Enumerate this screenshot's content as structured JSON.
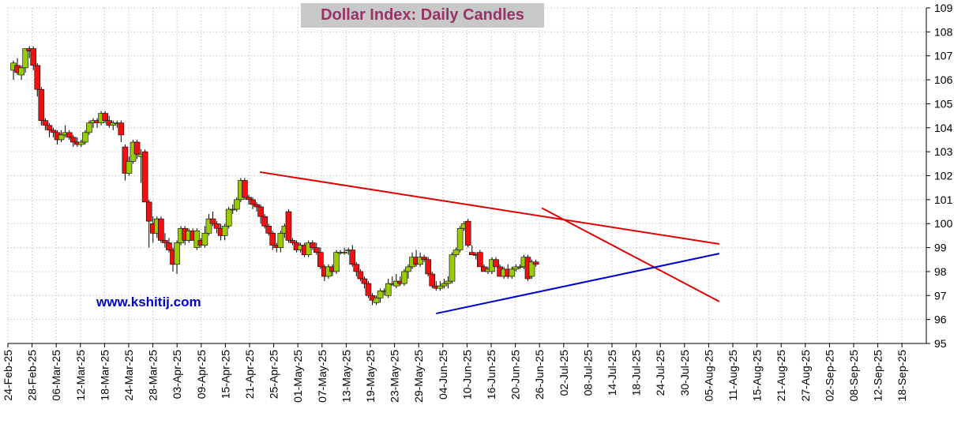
{
  "chart_data": {
    "type": "candlestick",
    "title": "Dollar Index: Daily Candles",
    "watermark": "www.kshitij.com",
    "y_axis": {
      "position": "right",
      "ylim": [
        95,
        109
      ],
      "ticks": [
        95,
        96,
        97,
        98,
        99,
        100,
        101,
        102,
        103,
        104,
        105,
        106,
        107,
        108,
        109
      ]
    },
    "x_tick_labels": [
      "24-Feb-25",
      "28-Feb-25",
      "06-Mar-25",
      "12-Mar-25",
      "18-Mar-25",
      "24-Mar-25",
      "28-Mar-25",
      "03-Apr-25",
      "09-Apr-25",
      "15-Apr-25",
      "21-Apr-25",
      "25-Apr-25",
      "01-May-25",
      "07-May-25",
      "13-May-25",
      "19-May-25",
      "23-May-25",
      "29-May-25",
      "04-Jun-25",
      "10-Jun-25",
      "16-Jun-25",
      "20-Jun-25",
      "26-Jun-25",
      "02-Jul-25",
      "08-Jul-25",
      "14-Jul-25",
      "18-Jul-25",
      "24-Jul-25",
      "30-Jul-25",
      "05-Aug-25",
      "11-Aug-25",
      "15-Aug-25",
      "21-Aug-25",
      "27-Aug-25",
      "02-Sep-25",
      "08-Sep-25",
      "12-Sep-25",
      "18-Sep-25"
    ],
    "up_color": "#99cc00",
    "down_color": "#ee1111",
    "candles": [
      {
        "o": 106.4,
        "h": 106.8,
        "l": 106.0,
        "c": 106.7
      },
      {
        "o": 106.6,
        "h": 106.9,
        "l": 106.2,
        "c": 106.3
      },
      {
        "o": 106.2,
        "h": 106.6,
        "l": 106.0,
        "c": 106.5
      },
      {
        "o": 106.5,
        "h": 107.3,
        "l": 106.3,
        "c": 107.3
      },
      {
        "o": 107.3,
        "h": 107.4,
        "l": 106.9,
        "c": 107.2
      },
      {
        "o": 107.3,
        "h": 107.4,
        "l": 106.4,
        "c": 106.6
      },
      {
        "o": 106.6,
        "h": 106.7,
        "l": 105.3,
        "c": 105.6
      },
      {
        "o": 105.6,
        "h": 105.7,
        "l": 104.1,
        "c": 104.3
      },
      {
        "o": 104.3,
        "h": 104.4,
        "l": 103.9,
        "c": 104.1
      },
      {
        "o": 104.1,
        "h": 104.2,
        "l": 103.6,
        "c": 103.9
      },
      {
        "o": 103.9,
        "h": 104.0,
        "l": 103.6,
        "c": 103.8
      },
      {
        "o": 103.8,
        "h": 103.9,
        "l": 103.3,
        "c": 103.5
      },
      {
        "o": 103.5,
        "h": 103.9,
        "l": 103.4,
        "c": 103.7
      },
      {
        "o": 103.7,
        "h": 104.1,
        "l": 103.6,
        "c": 103.8
      },
      {
        "o": 103.8,
        "h": 103.9,
        "l": 103.5,
        "c": 103.6
      },
      {
        "o": 103.6,
        "h": 103.7,
        "l": 103.2,
        "c": 103.4
      },
      {
        "o": 103.4,
        "h": 103.6,
        "l": 103.2,
        "c": 103.3
      },
      {
        "o": 103.3,
        "h": 103.5,
        "l": 103.2,
        "c": 103.4
      },
      {
        "o": 103.4,
        "h": 103.9,
        "l": 103.3,
        "c": 103.8
      },
      {
        "o": 103.8,
        "h": 104.3,
        "l": 103.7,
        "c": 104.2
      },
      {
        "o": 104.2,
        "h": 104.4,
        "l": 104.0,
        "c": 104.3
      },
      {
        "o": 104.3,
        "h": 104.4,
        "l": 104.0,
        "c": 104.2
      },
      {
        "o": 104.2,
        "h": 104.7,
        "l": 104.1,
        "c": 104.6
      },
      {
        "o": 104.6,
        "h": 104.7,
        "l": 104.2,
        "c": 104.3
      },
      {
        "o": 104.3,
        "h": 104.5,
        "l": 104.0,
        "c": 104.1
      },
      {
        "o": 104.1,
        "h": 104.3,
        "l": 103.9,
        "c": 104.2
      },
      {
        "o": 104.2,
        "h": 104.3,
        "l": 104.0,
        "c": 104.2
      },
      {
        "o": 104.2,
        "h": 104.3,
        "l": 103.4,
        "c": 103.7
      },
      {
        "o": 103.2,
        "h": 103.3,
        "l": 101.8,
        "c": 102.1
      },
      {
        "o": 102.1,
        "h": 102.8,
        "l": 102.0,
        "c": 102.6
      },
      {
        "o": 102.6,
        "h": 103.5,
        "l": 102.5,
        "c": 103.4
      },
      {
        "o": 103.4,
        "h": 103.5,
        "l": 102.7,
        "c": 102.9
      },
      {
        "o": 102.8,
        "h": 103.1,
        "l": 101.7,
        "c": 102.9
      },
      {
        "o": 103.0,
        "h": 103.1,
        "l": 100.9,
        "c": 100.9
      },
      {
        "o": 100.9,
        "h": 101.0,
        "l": 99.0,
        "c": 100.1
      },
      {
        "o": 100.0,
        "h": 100.3,
        "l": 99.2,
        "c": 99.6
      },
      {
        "o": 99.6,
        "h": 100.3,
        "l": 99.4,
        "c": 100.2
      },
      {
        "o": 100.2,
        "h": 100.3,
        "l": 99.2,
        "c": 99.3
      },
      {
        "o": 99.3,
        "h": 99.6,
        "l": 99.0,
        "c": 99.2
      },
      {
        "o": 99.2,
        "h": 99.4,
        "l": 98.8,
        "c": 98.9
      },
      {
        "o": 98.9,
        "h": 99.0,
        "l": 98.0,
        "c": 98.3
      },
      {
        "o": 98.3,
        "h": 99.3,
        "l": 97.9,
        "c": 99.2
      },
      {
        "o": 99.2,
        "h": 99.9,
        "l": 99.1,
        "c": 99.8
      },
      {
        "o": 99.8,
        "h": 99.9,
        "l": 99.1,
        "c": 99.3
      },
      {
        "o": 99.3,
        "h": 99.8,
        "l": 99.2,
        "c": 99.7
      },
      {
        "o": 99.7,
        "h": 99.8,
        "l": 99.3,
        "c": 99.3
      },
      {
        "o": 99.0,
        "h": 99.8,
        "l": 98.9,
        "c": 99.7
      },
      {
        "o": 99.3,
        "h": 99.4,
        "l": 99.0,
        "c": 99.1
      },
      {
        "o": 99.1,
        "h": 99.9,
        "l": 99.0,
        "c": 99.6
      },
      {
        "o": 99.6,
        "h": 100.4,
        "l": 99.5,
        "c": 100.2
      },
      {
        "o": 100.2,
        "h": 100.5,
        "l": 99.9,
        "c": 100.0
      },
      {
        "o": 100.0,
        "h": 100.1,
        "l": 99.6,
        "c": 99.8
      },
      {
        "o": 99.8,
        "h": 100.0,
        "l": 99.3,
        "c": 99.5
      },
      {
        "o": 99.5,
        "h": 100.0,
        "l": 99.3,
        "c": 99.9
      },
      {
        "o": 99.9,
        "h": 100.7,
        "l": 99.8,
        "c": 100.6
      },
      {
        "o": 100.6,
        "h": 100.8,
        "l": 100.4,
        "c": 100.6
      },
      {
        "o": 100.6,
        "h": 101.1,
        "l": 100.5,
        "c": 101.0
      },
      {
        "o": 101.0,
        "h": 101.9,
        "l": 100.9,
        "c": 101.8
      },
      {
        "o": 101.8,
        "h": 101.9,
        "l": 101.0,
        "c": 101.1
      },
      {
        "o": 101.1,
        "h": 101.2,
        "l": 100.8,
        "c": 101.0
      },
      {
        "o": 101.0,
        "h": 101.1,
        "l": 100.6,
        "c": 100.8
      },
      {
        "o": 100.8,
        "h": 100.9,
        "l": 100.5,
        "c": 100.7
      },
      {
        "o": 100.7,
        "h": 100.8,
        "l": 100.0,
        "c": 100.3
      },
      {
        "o": 100.3,
        "h": 100.4,
        "l": 99.8,
        "c": 99.9
      },
      {
        "o": 99.9,
        "h": 100.0,
        "l": 99.5,
        "c": 99.6
      },
      {
        "o": 99.6,
        "h": 99.7,
        "l": 98.9,
        "c": 99.1
      },
      {
        "o": 99.1,
        "h": 99.2,
        "l": 98.8,
        "c": 99.0
      },
      {
        "o": 99.0,
        "h": 99.7,
        "l": 98.8,
        "c": 99.6
      },
      {
        "o": 99.6,
        "h": 100.0,
        "l": 99.4,
        "c": 99.9
      },
      {
        "o": 100.5,
        "h": 100.6,
        "l": 99.2,
        "c": 99.3
      },
      {
        "o": 99.3,
        "h": 99.4,
        "l": 99.1,
        "c": 99.2
      },
      {
        "o": 99.2,
        "h": 99.3,
        "l": 98.8,
        "c": 98.9
      },
      {
        "o": 98.9,
        "h": 99.2,
        "l": 98.8,
        "c": 99.1
      },
      {
        "o": 99.1,
        "h": 99.2,
        "l": 98.6,
        "c": 98.7
      },
      {
        "o": 98.7,
        "h": 99.3,
        "l": 98.6,
        "c": 99.2
      },
      {
        "o": 99.2,
        "h": 99.3,
        "l": 98.9,
        "c": 99.0
      },
      {
        "o": 99.0,
        "h": 99.2,
        "l": 98.7,
        "c": 98.8
      },
      {
        "o": 98.8,
        "h": 99.0,
        "l": 98.1,
        "c": 98.2
      },
      {
        "o": 98.2,
        "h": 98.3,
        "l": 97.6,
        "c": 97.8
      },
      {
        "o": 97.8,
        "h": 98.3,
        "l": 97.7,
        "c": 98.2
      },
      {
        "o": 98.2,
        "h": 98.3,
        "l": 97.8,
        "c": 98.0
      },
      {
        "o": 98.0,
        "h": 98.9,
        "l": 97.9,
        "c": 98.8
      },
      {
        "o": 98.8,
        "h": 98.9,
        "l": 98.7,
        "c": 98.8
      },
      {
        "o": 98.8,
        "h": 99.0,
        "l": 98.7,
        "c": 98.8
      },
      {
        "o": 98.9,
        "h": 99.0,
        "l": 98.7,
        "c": 98.9
      },
      {
        "o": 98.9,
        "h": 99.1,
        "l": 98.2,
        "c": 98.3
      },
      {
        "o": 98.3,
        "h": 98.4,
        "l": 97.8,
        "c": 98.0
      },
      {
        "o": 98.0,
        "h": 98.1,
        "l": 97.6,
        "c": 97.7
      },
      {
        "o": 97.7,
        "h": 97.8,
        "l": 97.3,
        "c": 97.5
      },
      {
        "o": 97.5,
        "h": 97.6,
        "l": 96.9,
        "c": 97.0
      },
      {
        "o": 97.0,
        "h": 97.1,
        "l": 96.6,
        "c": 96.8
      },
      {
        "o": 96.7,
        "h": 97.0,
        "l": 96.6,
        "c": 96.9
      },
      {
        "o": 96.9,
        "h": 97.3,
        "l": 96.7,
        "c": 97.2
      },
      {
        "o": 97.2,
        "h": 97.3,
        "l": 97.0,
        "c": 97.2
      },
      {
        "o": 97.0,
        "h": 97.7,
        "l": 96.9,
        "c": 97.5
      },
      {
        "o": 97.5,
        "h": 97.8,
        "l": 97.4,
        "c": 97.5
      },
      {
        "o": 97.4,
        "h": 97.9,
        "l": 97.3,
        "c": 97.6
      },
      {
        "o": 97.6,
        "h": 97.8,
        "l": 97.4,
        "c": 97.5
      },
      {
        "o": 97.5,
        "h": 98.1,
        "l": 97.4,
        "c": 98.0
      },
      {
        "o": 98.0,
        "h": 98.3,
        "l": 97.7,
        "c": 98.2
      },
      {
        "o": 98.2,
        "h": 98.8,
        "l": 98.1,
        "c": 98.6
      },
      {
        "o": 98.6,
        "h": 98.9,
        "l": 98.2,
        "c": 98.3
      },
      {
        "o": 98.3,
        "h": 98.8,
        "l": 98.2,
        "c": 98.6
      },
      {
        "o": 98.6,
        "h": 98.7,
        "l": 98.4,
        "c": 98.5
      },
      {
        "o": 98.5,
        "h": 98.6,
        "l": 97.8,
        "c": 97.9
      },
      {
        "o": 97.9,
        "h": 98.0,
        "l": 97.3,
        "c": 97.4
      },
      {
        "o": 97.4,
        "h": 97.6,
        "l": 97.2,
        "c": 97.3
      },
      {
        "o": 97.3,
        "h": 97.6,
        "l": 97.2,
        "c": 97.4
      },
      {
        "o": 97.4,
        "h": 97.7,
        "l": 97.3,
        "c": 97.5
      },
      {
        "o": 97.5,
        "h": 97.8,
        "l": 97.3,
        "c": 97.6
      },
      {
        "o": 97.6,
        "h": 98.8,
        "l": 97.5,
        "c": 98.7
      },
      {
        "o": 98.7,
        "h": 99.0,
        "l": 98.6,
        "c": 98.9
      },
      {
        "o": 98.9,
        "h": 99.9,
        "l": 98.8,
        "c": 99.8
      },
      {
        "o": 99.8,
        "h": 100.1,
        "l": 99.7,
        "c": 100.0
      },
      {
        "o": 100.1,
        "h": 100.2,
        "l": 99.0,
        "c": 99.1
      },
      {
        "o": 98.8,
        "h": 99.1,
        "l": 98.7,
        "c": 98.7
      },
      {
        "o": 98.7,
        "h": 98.8,
        "l": 98.5,
        "c": 98.7
      },
      {
        "o": 98.8,
        "h": 98.9,
        "l": 98.2,
        "c": 98.2
      },
      {
        "o": 98.2,
        "h": 98.3,
        "l": 98.0,
        "c": 98.0
      },
      {
        "o": 98.0,
        "h": 98.2,
        "l": 97.9,
        "c": 98.1
      },
      {
        "o": 98.0,
        "h": 98.6,
        "l": 97.9,
        "c": 98.5
      },
      {
        "o": 98.5,
        "h": 98.6,
        "l": 98.2,
        "c": 98.2
      },
      {
        "o": 98.2,
        "h": 98.3,
        "l": 97.8,
        "c": 97.8
      },
      {
        "o": 97.8,
        "h": 98.2,
        "l": 97.7,
        "c": 98.1
      },
      {
        "o": 98.1,
        "h": 98.3,
        "l": 97.7,
        "c": 97.8
      },
      {
        "o": 97.8,
        "h": 98.2,
        "l": 97.7,
        "c": 98.1
      },
      {
        "o": 98.1,
        "h": 98.3,
        "l": 98.0,
        "c": 98.2
      },
      {
        "o": 98.2,
        "h": 98.3,
        "l": 98.1,
        "c": 98.2
      },
      {
        "o": 98.2,
        "h": 98.7,
        "l": 98.1,
        "c": 98.6
      },
      {
        "o": 98.6,
        "h": 98.7,
        "l": 97.6,
        "c": 97.7
      },
      {
        "o": 97.8,
        "h": 98.5,
        "l": 97.7,
        "c": 98.4
      },
      {
        "o": 98.4,
        "h": 98.5,
        "l": 98.2,
        "c": 98.3
      }
    ],
    "trendlines": [
      {
        "color": "#dd0000",
        "x0": 61.8,
        "y0": 102.15,
        "x1": 177.0,
        "y1": 99.15
      },
      {
        "color": "#dd0000",
        "x0": 132.5,
        "y0": 100.65,
        "x1": 177.0,
        "y1": 96.75
      },
      {
        "color": "#0000cc",
        "x0": 106.0,
        "y0": 96.25,
        "x1": 177.0,
        "y1": 98.75
      }
    ]
  }
}
